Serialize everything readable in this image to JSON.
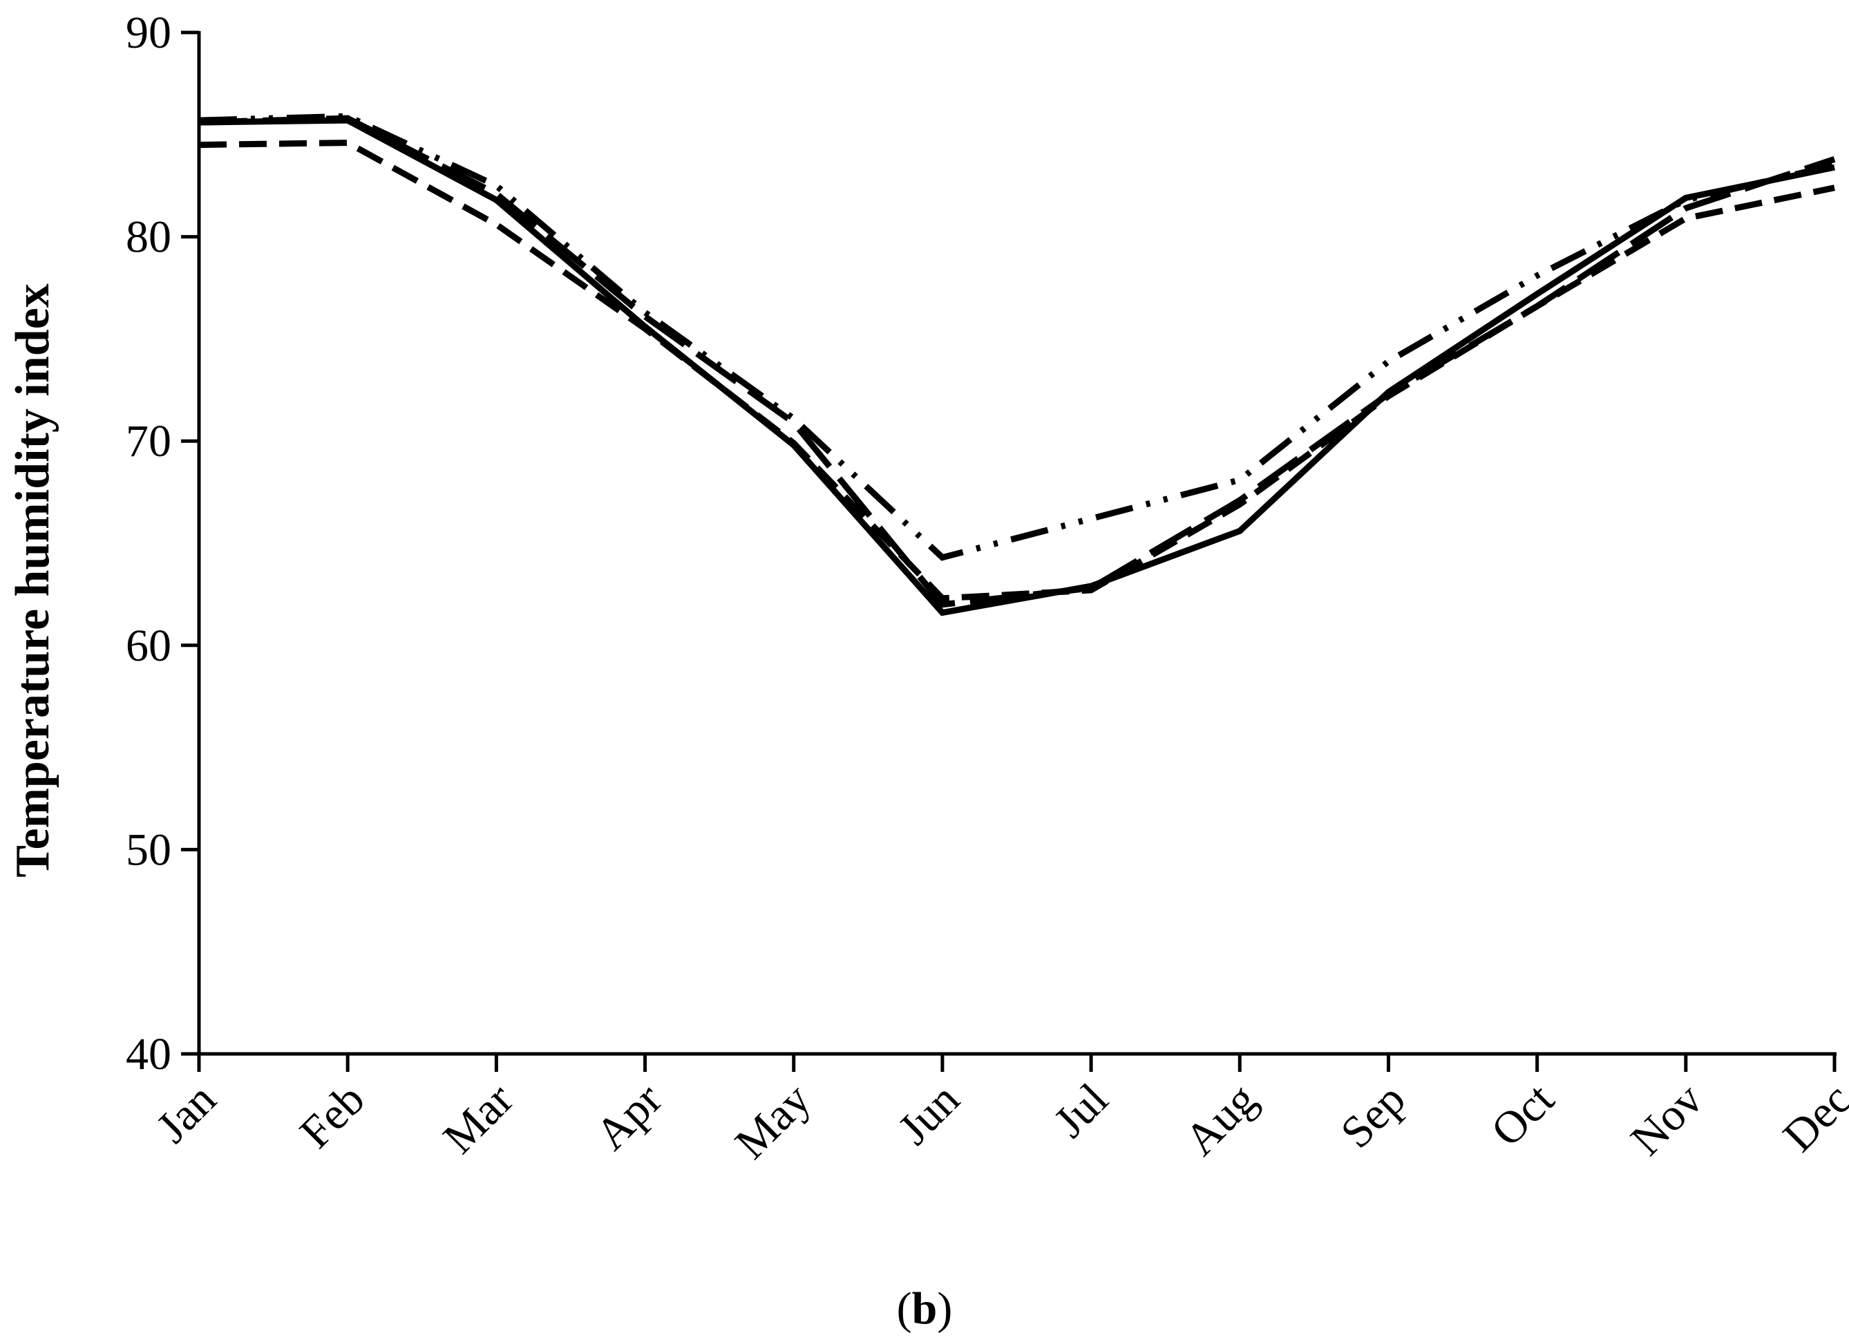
{
  "chart_data": {
    "type": "line",
    "categories": [
      "Jan",
      "Feb",
      "Mar",
      "Apr",
      "May",
      "Jun",
      "Jul",
      "Aug",
      "Sep",
      "Oct",
      "Nov",
      "Dec"
    ],
    "series": [
      {
        "style": "solid",
        "values": [
          85.6,
          85.7,
          81.8,
          75.6,
          69.8,
          61.6,
          62.9,
          65.6,
          72.4,
          77.2,
          81.9,
          83.4
        ]
      },
      {
        "style": "dash",
        "values": [
          84.5,
          84.6,
          80.6,
          75.5,
          69.9,
          62.3,
          62.7,
          66.9,
          72.2,
          76.6,
          80.9,
          82.4
        ]
      },
      {
        "style": "long-dash",
        "values": [
          85.6,
          85.8,
          82.1,
          76.1,
          70.9,
          62.0,
          62.8,
          67.1,
          72.3,
          76.6,
          81.4,
          83.8
        ]
      },
      {
        "style": "dash-dot-dot",
        "values": [
          85.7,
          85.9,
          82.5,
          76.3,
          71.1,
          64.3,
          66.2,
          68.1,
          73.9,
          78.1,
          81.8,
          83.5
        ]
      }
    ],
    "ylabel": "Temperature humidity index",
    "xlabel": "",
    "ylim": [
      40,
      90
    ],
    "yticks": [
      40,
      50,
      60,
      70,
      80,
      90
    ],
    "grid": false,
    "legend": "none"
  },
  "caption": {
    "open": "(",
    "letter": "b",
    "close": ")"
  }
}
